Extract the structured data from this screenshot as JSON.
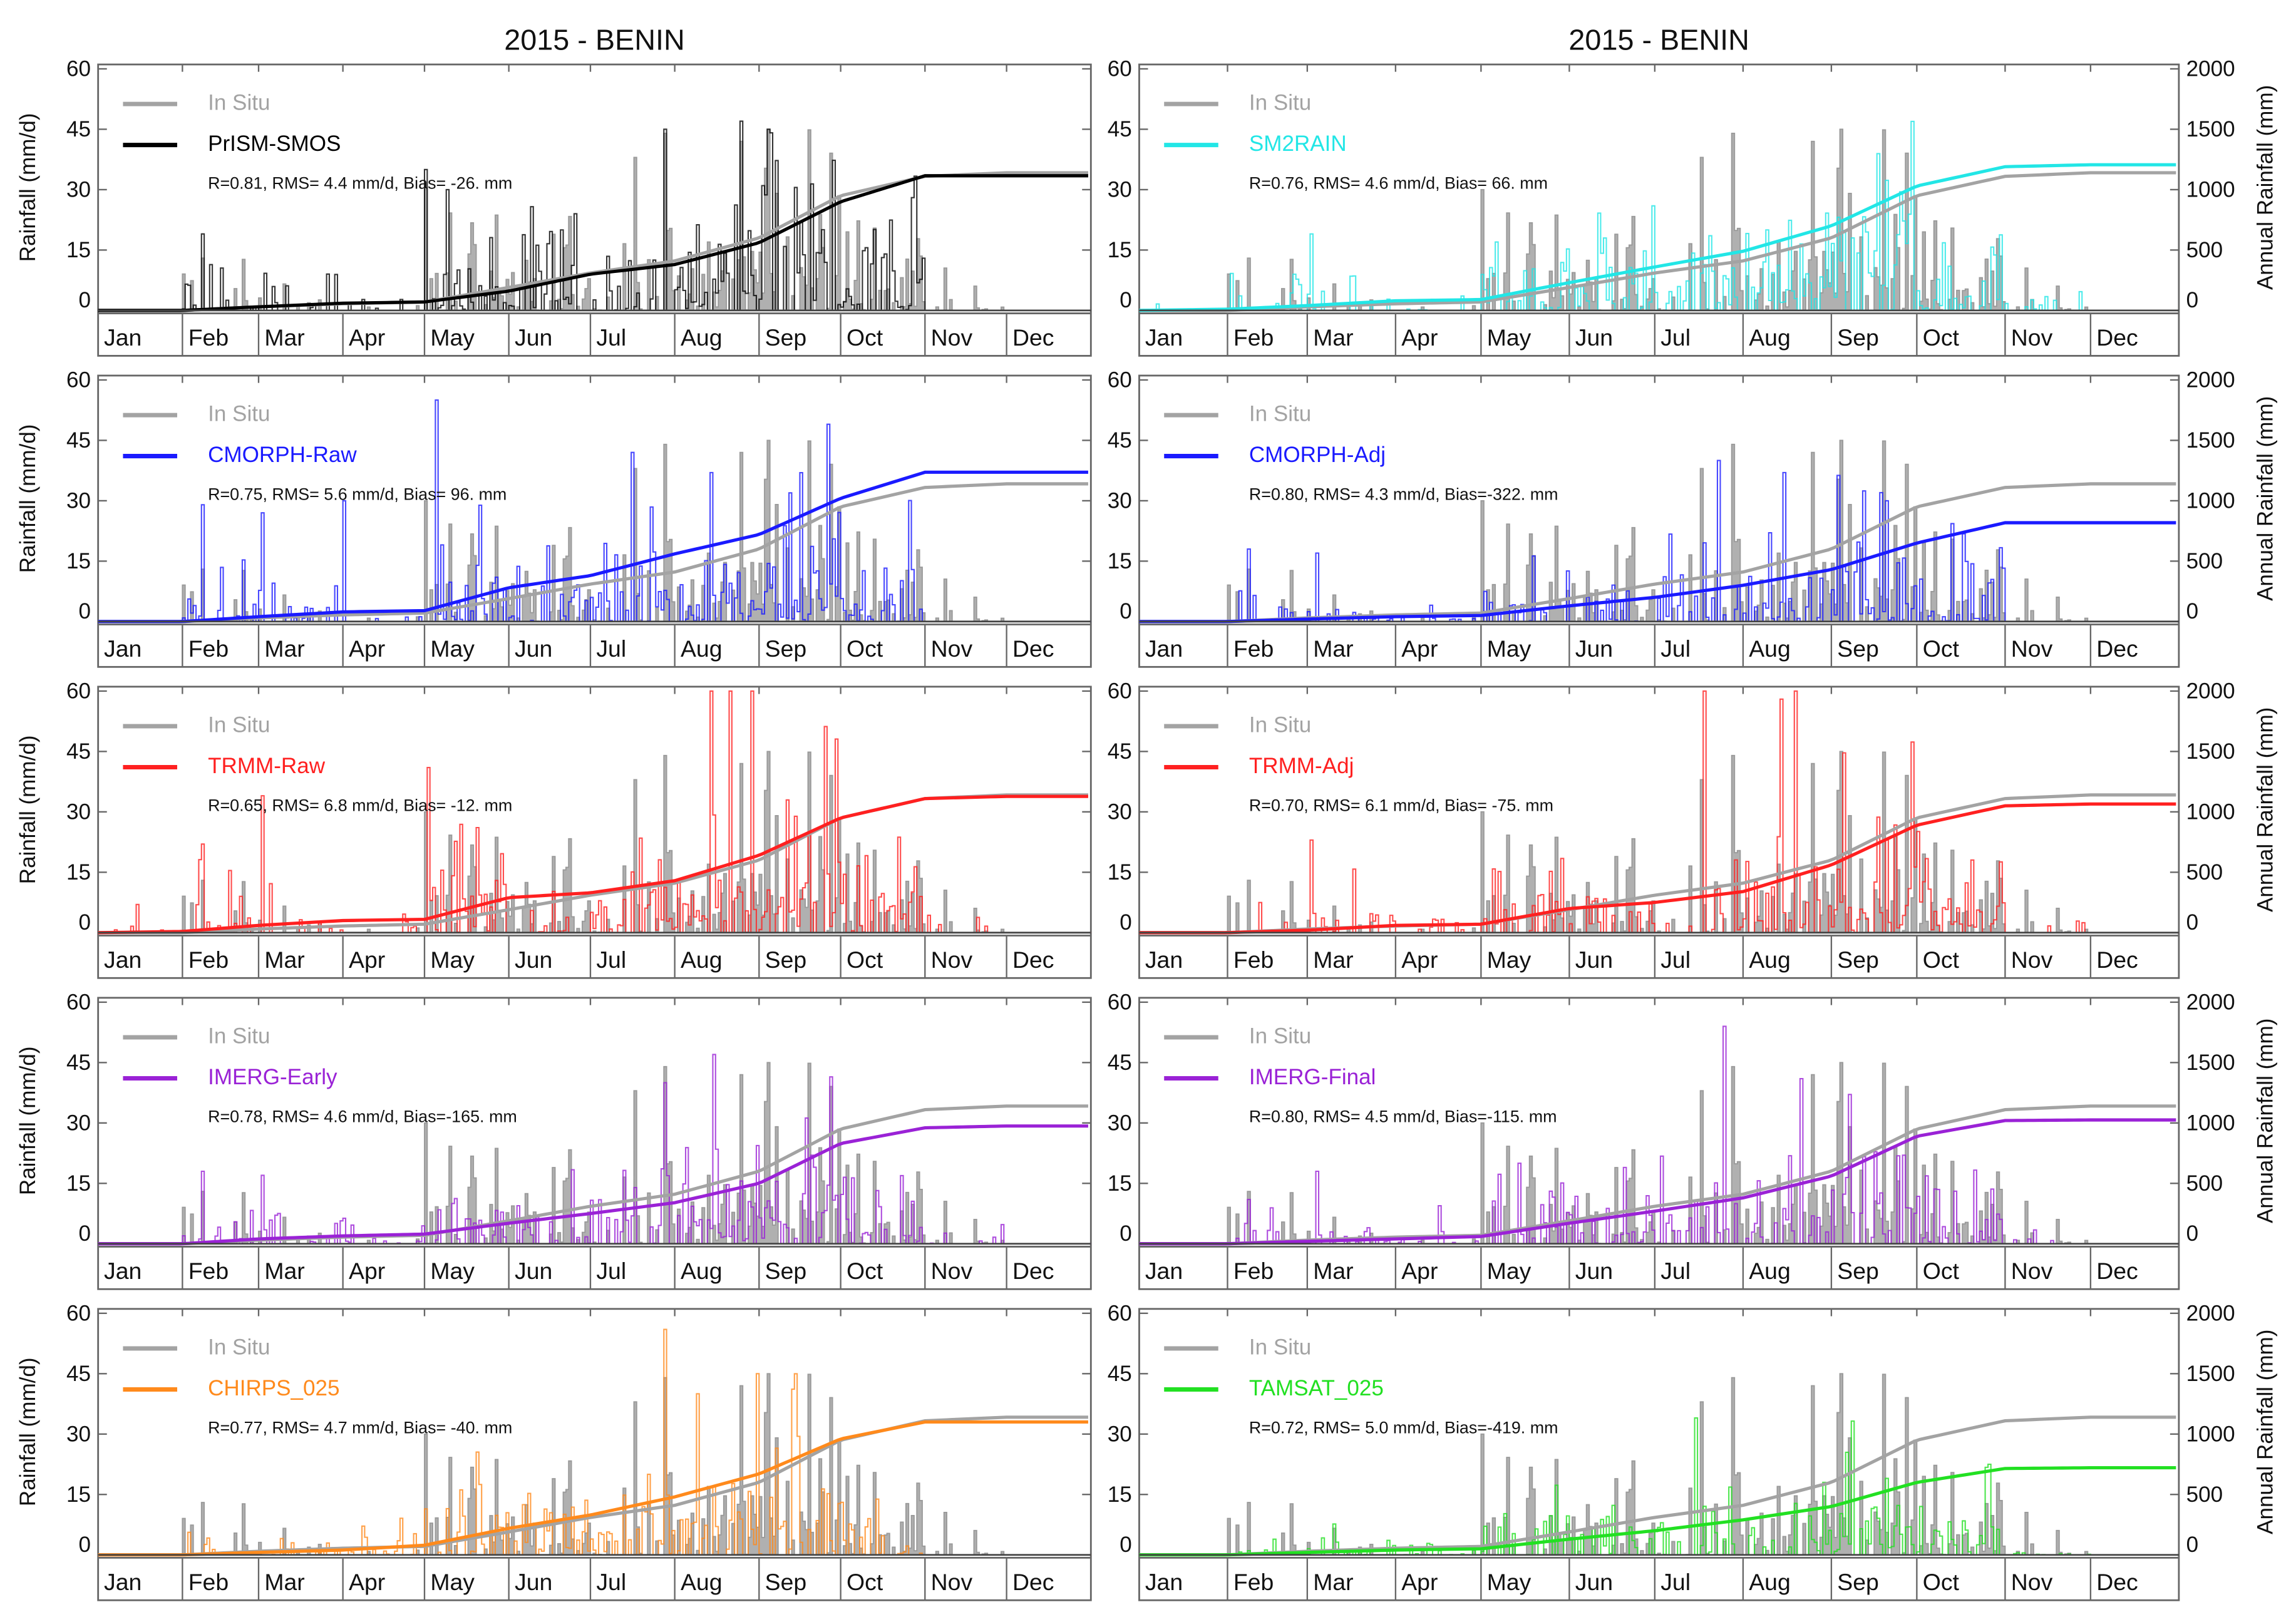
{
  "titles": [
    "2015 - BENIN",
    "2015 - BENIN"
  ],
  "ylabel_left": "Rainfall (mm/d)",
  "ylabel_right": "Annual Rainfall (mm)",
  "chart_data": {
    "type": "line",
    "xlabel": "",
    "months": [
      "Jan",
      "Feb",
      "Mar",
      "Apr",
      "May",
      "Jun",
      "Jul",
      "Aug",
      "Sep",
      "Oct",
      "Nov",
      "Dec"
    ],
    "left_axis": {
      "label": "Rainfall (mm/d)",
      "range": [
        0,
        60
      ],
      "ticks": [
        "0",
        "15",
        "30",
        "45",
        "60"
      ]
    },
    "right_axis": {
      "label": "Annual Rainfall (mm)",
      "range": [
        0,
        2000
      ],
      "ticks": [
        "0",
        "500",
        "1000",
        "1500",
        "2000"
      ]
    },
    "reference": {
      "name": "In Situ",
      "color": "#a3a3a3",
      "cumulative_mm_at_month_start": [
        0,
        0,
        30,
        55,
        70,
        190,
        310,
        410,
        600,
        950,
        1110,
        1140,
        1140
      ]
    },
    "panels": [
      {
        "title": "2015 - BENIN",
        "product": "PrISM-SMOS",
        "color": "#000000",
        "stats": "R=0.81, RMS= 4.4 mm/d, Bias= -26. mm",
        "total_mm": 1115,
        "cumulative_mm_at_month_start": [
          0,
          0,
          30,
          60,
          70,
          160,
          300,
          380,
          560,
          900,
          1115,
          1115,
          1115
        ],
        "peaks": [
          [
            38,
            19
          ],
          [
            170,
            20
          ],
          [
            208,
            45
          ],
          [
            236,
            47
          ],
          [
            246,
            45
          ],
          [
            120,
            35
          ],
          [
            128,
            30
          ]
        ]
      },
      {
        "title": "2015 - BENIN",
        "product": "SM2RAIN",
        "color": "#22e6e6",
        "stats": "R=0.76, RMS= 4.6 mm/d, Bias=  66. mm",
        "total_mm": 1206,
        "cumulative_mm_at_month_start": [
          0,
          10,
          40,
          80,
          90,
          230,
          360,
          490,
          700,
          1030,
          1190,
          1206,
          1206
        ],
        "peaks": [
          [
            60,
            19
          ],
          [
            125,
            17
          ],
          [
            220,
            20
          ],
          [
            250,
            18
          ]
        ]
      },
      {
        "title": "",
        "product": "CMORPH-Raw",
        "color": "#1a1aff",
        "stats": "R=0.75, RMS= 5.6 mm/d, Bias=  96. mm",
        "total_mm": 1236,
        "cumulative_mm_at_month_start": [
          0,
          0,
          40,
          80,
          90,
          280,
          380,
          560,
          720,
          1020,
          1236,
          1236,
          1236
        ],
        "peaks": [
          [
            38,
            29
          ],
          [
            60,
            27
          ],
          [
            90,
            30
          ],
          [
            124,
            55
          ],
          [
            196,
            42
          ],
          [
            225,
            37
          ],
          [
            268,
            49
          ]
        ]
      },
      {
        "title": "",
        "product": "CMORPH-Adj",
        "color": "#1a1aff",
        "stats": "R=0.80, RMS= 4.3 mm/d, Bias=-322. mm",
        "total_mm": 818,
        "cumulative_mm_at_month_start": [
          0,
          0,
          20,
          40,
          50,
          130,
          200,
          300,
          430,
          650,
          818,
          818,
          818
        ],
        "peaks": [
          [
            38,
            18
          ],
          [
            62,
            17
          ],
          [
            203,
            40
          ],
          [
            226,
            37
          ],
          [
            262,
            30
          ]
        ]
      },
      {
        "title": "",
        "product": "TRMM-Raw",
        "color": "#ff2020",
        "stats": "R=0.65, RMS= 6.8 mm/d, Bias= -12. mm",
        "total_mm": 1128,
        "cumulative_mm_at_month_start": [
          0,
          10,
          60,
          100,
          110,
          290,
          330,
          430,
          640,
          950,
          1110,
          1128,
          1128
        ],
        "peaks": [
          [
            14,
            7
          ],
          [
            38,
            22
          ],
          [
            60,
            34
          ],
          [
            121,
            41
          ],
          [
            225,
            60
          ],
          [
            232,
            60
          ],
          [
            240,
            60
          ]
        ]
      },
      {
        "title": "",
        "product": "TRMM-Adj",
        "color": "#ff2020",
        "stats": "R=0.70, RMS= 6.1 mm/d, Bias= -75. mm",
        "total_mm": 1065,
        "cumulative_mm_at_month_start": [
          0,
          0,
          20,
          60,
          70,
          200,
          250,
          340,
          560,
          890,
          1050,
          1065,
          1065
        ],
        "peaks": [
          [
            60,
            23
          ],
          [
            198,
            60
          ],
          [
            225,
            58
          ],
          [
            230,
            60
          ],
          [
            262,
            23
          ]
        ]
      },
      {
        "title": "",
        "product": "IMERG-Early",
        "color": "#9a22d6",
        "stats": "R=0.78, RMS= 4.6 mm/d, Bias=-165. mm",
        "total_mm": 975,
        "cumulative_mm_at_month_start": [
          0,
          0,
          40,
          65,
          80,
          170,
          250,
          340,
          500,
          830,
          960,
          975,
          975
        ],
        "peaks": [
          [
            38,
            18
          ],
          [
            60,
            17
          ],
          [
            208,
            40
          ],
          [
            226,
            47
          ],
          [
            262,
            22
          ]
        ]
      },
      {
        "title": "",
        "product": "IMERG-Final",
        "color": "#9a22d6",
        "stats": "R=0.80, RMS= 4.5 mm/d, Bias=-115. mm",
        "total_mm": 1025,
        "cumulative_mm_at_month_start": [
          0,
          0,
          20,
          40,
          60,
          170,
          270,
          380,
          560,
          890,
          1020,
          1025,
          1025
        ],
        "peaks": [
          [
            38,
            11
          ],
          [
            62,
            18
          ],
          [
            205,
            54
          ],
          [
            232,
            41
          ],
          [
            268,
            22
          ]
        ]
      },
      {
        "title": "",
        "product": "CHIRPS_025",
        "color": "#ff8a1c",
        "stats": "R=0.77, RMS= 4.7 mm/d, Bias= -40. mm",
        "total_mm": 1100,
        "cumulative_mm_at_month_start": [
          0,
          0,
          20,
          40,
          80,
          220,
          330,
          480,
          670,
          960,
          1100,
          1100,
          1100
        ],
        "peaks": [
          [
            208,
            56
          ],
          [
            220,
            40
          ],
          [
            242,
            45
          ]
        ]
      },
      {
        "title": "",
        "product": "TAMSAT_025",
        "color": "#22e022",
        "stats": "R=0.72, RMS= 5.0 mm/d, Bias=-419. mm",
        "total_mm": 721,
        "cumulative_mm_at_month_start": [
          0,
          0,
          20,
          40,
          50,
          130,
          200,
          290,
          400,
          600,
          715,
          721,
          721
        ],
        "peaks": [
          [
            195,
            34
          ],
          [
            240,
            18
          ],
          [
            262,
            19
          ]
        ]
      }
    ]
  }
}
